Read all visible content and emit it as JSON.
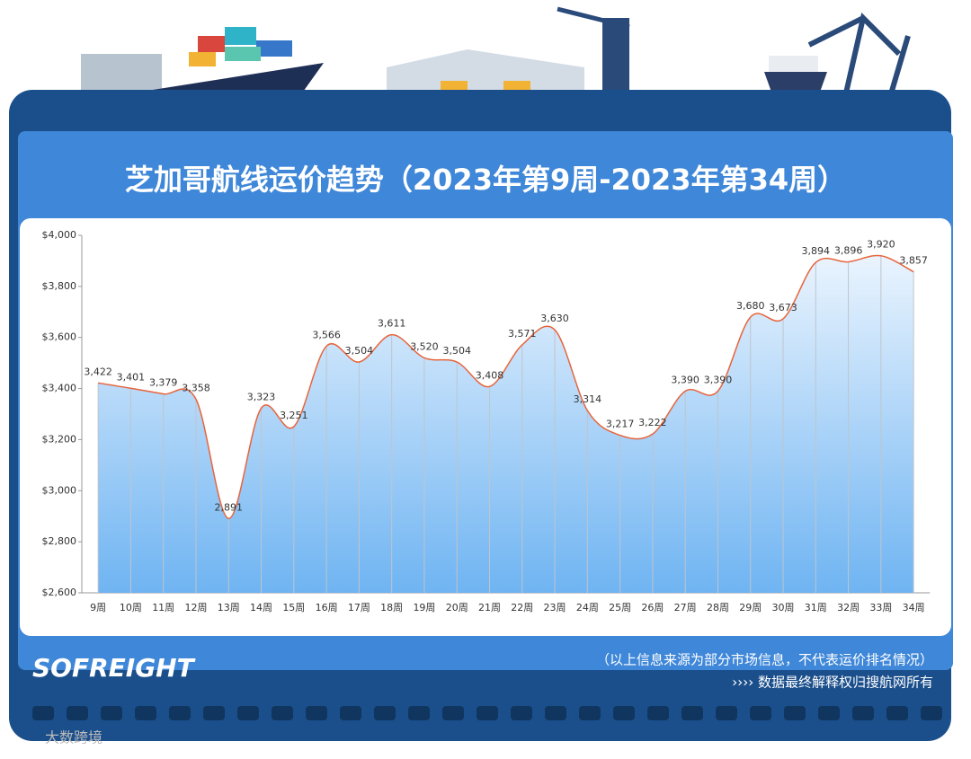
{
  "chart_data": {
    "type": "area",
    "title": "芝加哥航线运价趋势（2023年第9周-2023年第34周）",
    "categories": [
      "9周",
      "10周",
      "11周",
      "12周",
      "13周",
      "14周",
      "15周",
      "16周",
      "17周",
      "18周",
      "19周",
      "20周",
      "21周",
      "22周",
      "23周",
      "24周",
      "25周",
      "26周",
      "27周",
      "28周",
      "29周",
      "30周",
      "31周",
      "32周",
      "33周",
      "34周"
    ],
    "values": [
      3422,
      3401,
      3379,
      3358,
      2891,
      3323,
      3251,
      3566,
      3504,
      3611,
      3520,
      3504,
      3408,
      3571,
      3630,
      3314,
      3217,
      3222,
      3390,
      3390,
      3680,
      3673,
      3894,
      3896,
      3920,
      3857
    ],
    "value_labels": [
      "3,422",
      "3,401",
      "3,379",
      "3,358",
      "2,891",
      "3,323",
      "3,251",
      "3,566",
      "3,504",
      "3,611",
      "3,520",
      "3,504",
      "3,408",
      "3,571",
      "3,630",
      "3,314",
      "3,217",
      "3,222",
      "3,390",
      "3,390",
      "3,680",
      "3,673",
      "3,894",
      "3,896",
      "3,920",
      "3,857"
    ],
    "color": "#e8643c",
    "ylim": [
      2600,
      4000
    ],
    "yticks": [
      {
        "value": 2600,
        "label": "$2,600"
      },
      {
        "value": 2800,
        "label": "$2,800"
      },
      {
        "value": 3000,
        "label": "$3,000"
      },
      {
        "value": 3200,
        "label": "$3,200"
      },
      {
        "value": 3400,
        "label": "$3,400"
      },
      {
        "value": 3600,
        "label": "$3,600"
      },
      {
        "value": 3800,
        "label": "$3,800"
      },
      {
        "value": 4000,
        "label": "$4,000"
      }
    ],
    "grid": true
  },
  "logo": "SOFREIGHT",
  "notes": [
    "（以上信息来源为部分市场信息，不代表运价排名情况）",
    "›››› 数据最终解释权归搜航网所有"
  ],
  "watermark": "大数跨境"
}
